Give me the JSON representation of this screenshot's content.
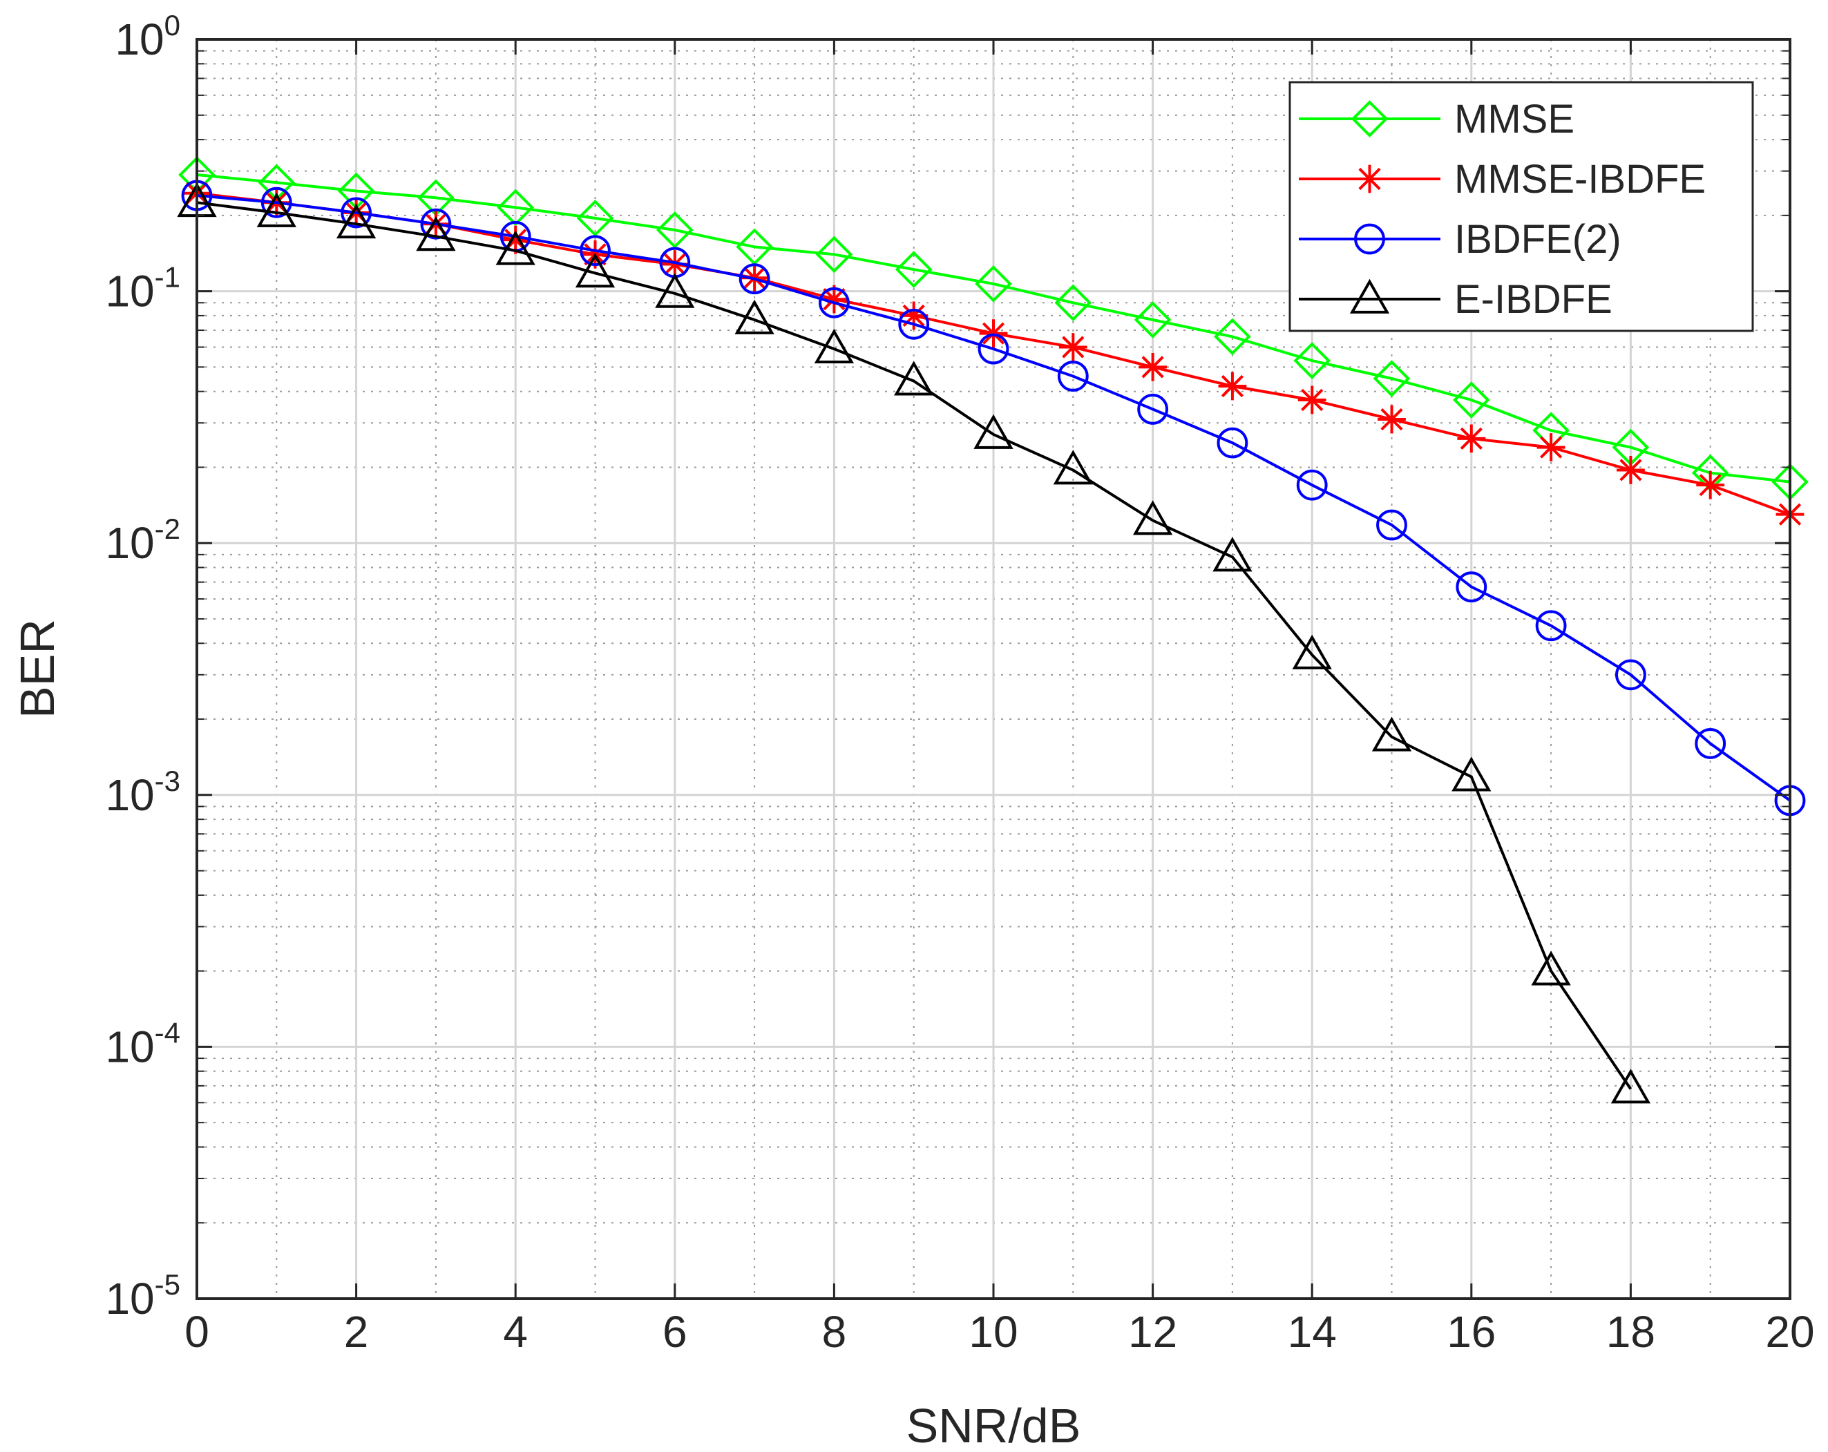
{
  "chart_data": {
    "type": "line",
    "xlabel": "SNR/dB",
    "ylabel": "BER",
    "yscale": "log",
    "xlim": [
      0,
      20
    ],
    "ylim": [
      1e-05,
      1
    ],
    "grid": true,
    "x_ticks": [
      "0",
      "2",
      "4",
      "6",
      "8",
      "10",
      "12",
      "14",
      "16",
      "18",
      "20"
    ],
    "y_ticks": [
      {
        "base": "10",
        "exp": "0"
      },
      {
        "base": "10",
        "exp": "-1"
      },
      {
        "base": "10",
        "exp": "-2"
      },
      {
        "base": "10",
        "exp": "-3"
      },
      {
        "base": "10",
        "exp": "-4"
      },
      {
        "base": "10",
        "exp": "-5"
      }
    ],
    "legend_position": "top-right",
    "series": [
      {
        "name": "MMSE",
        "color": "#00ff00",
        "marker": "diamond",
        "x": [
          0,
          1,
          2,
          3,
          4,
          5,
          6,
          7,
          8,
          9,
          10,
          11,
          12,
          13,
          14,
          15,
          16,
          17,
          18,
          19,
          20
        ],
        "y": [
          0.29,
          0.27,
          0.25,
          0.235,
          0.215,
          0.195,
          0.175,
          0.15,
          0.14,
          0.122,
          0.107,
          0.09,
          0.077,
          0.066,
          0.053,
          0.045,
          0.037,
          0.028,
          0.024,
          0.019,
          0.0175
        ]
      },
      {
        "name": "MMSE-IBDFE",
        "color": "#ff0000",
        "marker": "star",
        "x": [
          0,
          1,
          2,
          3,
          4,
          5,
          6,
          7,
          8,
          9,
          10,
          11,
          12,
          13,
          14,
          15,
          16,
          17,
          18,
          19,
          20
        ],
        "y": [
          0.245,
          0.225,
          0.205,
          0.185,
          0.16,
          0.14,
          0.128,
          0.113,
          0.093,
          0.08,
          0.068,
          0.06,
          0.05,
          0.042,
          0.037,
          0.031,
          0.026,
          0.024,
          0.0195,
          0.017,
          0.013
        ]
      },
      {
        "name": "IBDFE(2)",
        "color": "#0000ff",
        "marker": "circle",
        "x": [
          0,
          1,
          2,
          3,
          4,
          5,
          6,
          7,
          8,
          9,
          10,
          11,
          12,
          13,
          14,
          15,
          16,
          17,
          18,
          19,
          20
        ],
        "y": [
          0.24,
          0.225,
          0.205,
          0.185,
          0.165,
          0.145,
          0.13,
          0.112,
          0.09,
          0.074,
          0.059,
          0.046,
          0.034,
          0.025,
          0.017,
          0.0118,
          0.0067,
          0.0047,
          0.003,
          0.0016,
          0.00095
        ]
      },
      {
        "name": "E-IBDFE",
        "color": "#000000",
        "marker": "triangle",
        "x": [
          0,
          1,
          2,
          3,
          4,
          5,
          6,
          7,
          8,
          9,
          10,
          11,
          12,
          13,
          14,
          15,
          16,
          17,
          18
        ],
        "y": [
          0.225,
          0.205,
          0.185,
          0.165,
          0.145,
          0.118,
          0.098,
          0.077,
          0.059,
          0.044,
          0.027,
          0.0195,
          0.0123,
          0.0088,
          0.0036,
          0.0017,
          0.00118,
          0.0002,
          6.8e-05
        ]
      }
    ]
  }
}
